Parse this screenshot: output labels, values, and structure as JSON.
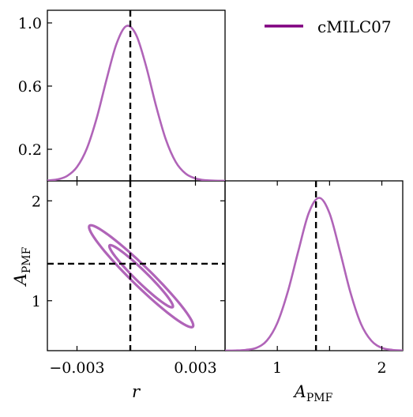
{
  "legend": {
    "label": "cMILC07",
    "color": "#800080",
    "placement": "top-right"
  },
  "chart_data": [
    {
      "type": "line",
      "panel": "r-marginal",
      "x": [
        -0.0045,
        -0.004,
        -0.0035,
        -0.003,
        -0.0025,
        -0.002,
        -0.0015,
        -0.001,
        -0.0005,
        0.0,
        0.0005,
        0.001,
        0.0015,
        0.002,
        0.0025,
        0.003,
        0.0035,
        0.004,
        0.0045
      ],
      "series": [
        {
          "name": "cMILC07",
          "color": "#b064b8",
          "values": [
            0.002,
            0.009,
            0.031,
            0.088,
            0.205,
            0.398,
            0.643,
            0.867,
            0.98,
            0.923,
            0.726,
            0.477,
            0.262,
            0.12,
            0.046,
            0.015,
            0.004,
            0.001,
            0.0
          ]
        }
      ],
      "xlim": [
        -0.0045,
        0.0045
      ],
      "ylim": [
        0.0,
        1.08
      ],
      "yticks": [
        {
          "v": 0.2,
          "label": "0.2"
        },
        {
          "v": 0.6,
          "label": "0.6"
        },
        {
          "v": 1.0,
          "label": "1.0"
        }
      ],
      "reference_x": -0.0003
    },
    {
      "type": "contour",
      "panel": "r-vs-APMF",
      "xlabel": "r",
      "ylabel": "A_PMF",
      "xlim": [
        -0.0045,
        0.0045
      ],
      "ylim": [
        0.5,
        2.2
      ],
      "xticks": [
        {
          "v": -0.003,
          "label": "−0.003"
        },
        {
          "v": 0.003,
          "label": "0.003"
        }
      ],
      "yticks": [
        {
          "v": 1,
          "label": "1"
        },
        {
          "v": 2,
          "label": "2"
        }
      ],
      "ellipse": {
        "center": [
          0.00025,
          1.245
        ],
        "r_sd": 0.00106,
        "a_sd": 0.205,
        "correlation": -0.965
      },
      "contour_levels_sigma": [
        1.52,
        2.49
      ],
      "series": [
        {
          "name": "cMILC07",
          "color": "#b064b8"
        }
      ],
      "reference_x": -0.0003,
      "reference_y": 1.37
    },
    {
      "type": "line",
      "panel": "APMF-marginal",
      "xlabel": "A_PMF",
      "x": [
        0.5,
        0.6,
        0.7,
        0.8,
        0.9,
        1.0,
        1.1,
        1.2,
        1.3,
        1.4,
        1.5,
        1.6,
        1.7,
        1.8,
        1.9,
        2.0,
        2.1,
        2.2
      ],
      "series": [
        {
          "name": "cMILC07",
          "color": "#b064b8",
          "values": [
            0.0,
            0.001,
            0.005,
            0.018,
            0.064,
            0.176,
            0.374,
            0.631,
            0.874,
            0.972,
            0.873,
            0.63,
            0.369,
            0.171,
            0.063,
            0.018,
            0.005,
            0.001
          ]
        }
      ],
      "xlim": [
        0.5,
        2.2
      ],
      "ylim": [
        0.0,
        1.08
      ],
      "xticks": [
        {
          "v": 1,
          "label": "1"
        },
        {
          "v": 1.5,
          "label": ""
        },
        {
          "v": 2,
          "label": "2"
        }
      ],
      "reference_x": 1.37
    }
  ]
}
